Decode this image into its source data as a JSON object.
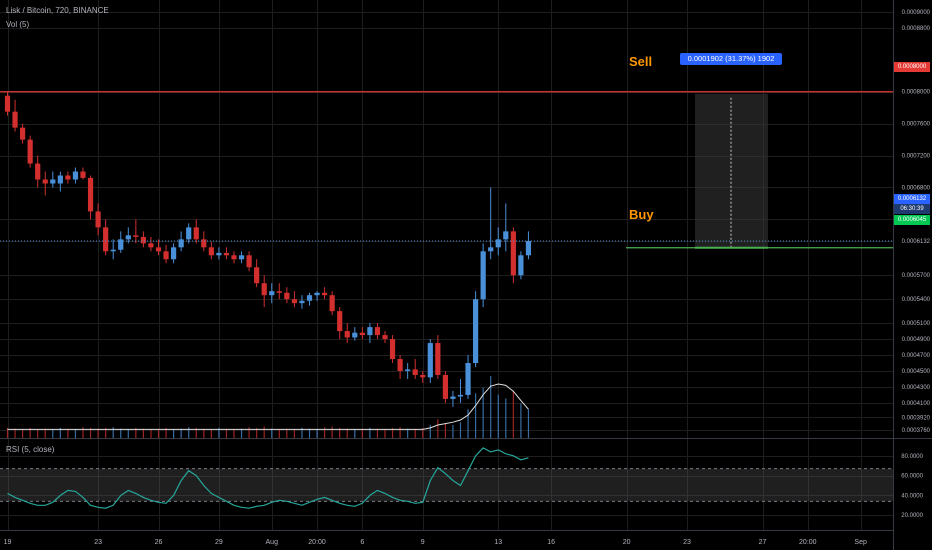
{
  "header": {
    "symbol": "Lisk / Bitcoin, 720, BINANCE",
    "volume_label": "Vol (5)",
    "rsi_label": "RSI (5, close)"
  },
  "annotations": {
    "sell": "Sell",
    "buy": "Buy",
    "measure": "0.0001902 (31.37%) 1902"
  },
  "price_tags": {
    "sell_level": "0.0008000",
    "last_price": "0.0006132",
    "countdown": "06:30:39",
    "buy_level": "0.0006045"
  },
  "colors": {
    "up": "#4a90d9",
    "down": "#d32f2f",
    "sell_line": "#e53935",
    "buy_line": "#4caf50",
    "rsi_line": "#26a69a",
    "grid": "#1e1e1e",
    "axis_text": "#b2b5be"
  },
  "chart_data": [
    {
      "type": "candlestick",
      "y_ticks": [
        "0.0009000",
        "0.0008800",
        "0.0008000",
        "0.0007600",
        "0.0007200",
        "0.0006800",
        "0.0006400",
        "0.0006132",
        "0.0005700",
        "0.0005400",
        "0.0005100",
        "0.0004900",
        "0.0004700",
        "0.0004500",
        "0.0004300",
        "0.0004100",
        "0.0003920",
        "0.0003760"
      ],
      "x_ticks": [
        "19",
        "23",
        "26",
        "29",
        "Aug",
        "20:00",
        "6",
        "9",
        "13",
        "16",
        "20",
        "23",
        "27",
        "20:00",
        "Sep"
      ],
      "x_tick_index": [
        0,
        12,
        20,
        28,
        35,
        41,
        47,
        55,
        65,
        72,
        82,
        90,
        100,
        106,
        113
      ],
      "ylim": [
        0.000366,
        0.000915
      ],
      "levels": {
        "sell": 0.0008,
        "buy": 0.0006045
      },
      "candles": [
        [
          0.000795,
          0.0008,
          0.00077,
          0.000775
        ],
        [
          0.000775,
          0.00079,
          0.00075,
          0.000755
        ],
        [
          0.000755,
          0.00076,
          0.000735,
          0.00074
        ],
        [
          0.00074,
          0.000745,
          0.000705,
          0.00071
        ],
        [
          0.00071,
          0.00072,
          0.00068,
          0.00069
        ],
        [
          0.00069,
          0.0007,
          0.00067,
          0.000685
        ],
        [
          0.000685,
          0.0007,
          0.00068,
          0.00069
        ],
        [
          0.000685,
          0.0007,
          0.000675,
          0.000695
        ],
        [
          0.000695,
          0.0007,
          0.000685,
          0.00069
        ],
        [
          0.00069,
          0.000705,
          0.000685,
          0.0007
        ],
        [
          0.0007,
          0.000705,
          0.00069,
          0.000692
        ],
        [
          0.000692,
          0.000695,
          0.00064,
          0.00065
        ],
        [
          0.00065,
          0.00066,
          0.00062,
          0.00063
        ],
        [
          0.00063,
          0.00064,
          0.000595,
          0.0006
        ],
        [
          0.0006,
          0.000615,
          0.00059,
          0.000602
        ],
        [
          0.000602,
          0.000625,
          0.000598,
          0.000615
        ],
        [
          0.000615,
          0.00063,
          0.00061,
          0.00062
        ],
        [
          0.00062,
          0.00064,
          0.00061,
          0.000618
        ],
        [
          0.000618,
          0.000625,
          0.000605,
          0.00061
        ],
        [
          0.00061,
          0.000618,
          0.0006,
          0.000605
        ],
        [
          0.000605,
          0.000615,
          0.000595,
          0.0006
        ],
        [
          0.0006,
          0.000608,
          0.000585,
          0.00059
        ],
        [
          0.00059,
          0.00061,
          0.000585,
          0.000605
        ],
        [
          0.000605,
          0.000625,
          0.0006,
          0.000615
        ],
        [
          0.000615,
          0.000635,
          0.00061,
          0.00063
        ],
        [
          0.00063,
          0.00064,
          0.00061,
          0.000615
        ],
        [
          0.000615,
          0.000625,
          0.0006,
          0.000605
        ],
        [
          0.000605,
          0.000612,
          0.00059,
          0.000595
        ],
        [
          0.000595,
          0.000605,
          0.00059,
          0.000598
        ],
        [
          0.000598,
          0.000605,
          0.00059,
          0.000595
        ],
        [
          0.000595,
          0.0006,
          0.000585,
          0.00059
        ],
        [
          0.00059,
          0.0006,
          0.000585,
          0.000595
        ],
        [
          0.000595,
          0.0006,
          0.000575,
          0.00058
        ],
        [
          0.00058,
          0.00059,
          0.000555,
          0.00056
        ],
        [
          0.00056,
          0.00057,
          0.00053,
          0.000545
        ],
        [
          0.000545,
          0.00056,
          0.000535,
          0.00055
        ],
        [
          0.00055,
          0.00056,
          0.00054,
          0.000548
        ],
        [
          0.000548,
          0.000555,
          0.000535,
          0.00054
        ],
        [
          0.00054,
          0.00055,
          0.00053,
          0.000535
        ],
        [
          0.000535,
          0.000545,
          0.000528,
          0.000538
        ],
        [
          0.000538,
          0.000548,
          0.000532,
          0.000545
        ],
        [
          0.000545,
          0.00055,
          0.000538,
          0.000548
        ],
        [
          0.000548,
          0.000555,
          0.00054,
          0.000545
        ],
        [
          0.000545,
          0.00055,
          0.00052,
          0.000525
        ],
        [
          0.000525,
          0.00053,
          0.00049,
          0.0005
        ],
        [
          0.0005,
          0.00051,
          0.000485,
          0.000492
        ],
        [
          0.000492,
          0.000505,
          0.000488,
          0.000498
        ],
        [
          0.000498,
          0.000505,
          0.00049,
          0.000495
        ],
        [
          0.000495,
          0.00051,
          0.000485,
          0.000505
        ],
        [
          0.000505,
          0.00051,
          0.00049,
          0.000495
        ],
        [
          0.000495,
          0.0005,
          0.000485,
          0.00049
        ],
        [
          0.00049,
          0.000495,
          0.00046,
          0.000465
        ],
        [
          0.000465,
          0.00047,
          0.00044,
          0.00045
        ],
        [
          0.00045,
          0.00046,
          0.00044,
          0.000452
        ],
        [
          0.000452,
          0.000465,
          0.00044,
          0.000445
        ],
        [
          0.000445,
          0.00045,
          0.000435,
          0.000442
        ],
        [
          0.000442,
          0.00049,
          0.000435,
          0.000485
        ],
        [
          0.000485,
          0.000495,
          0.00044,
          0.000445
        ],
        [
          0.000445,
          0.00045,
          0.00041,
          0.000415
        ],
        [
          0.000415,
          0.000425,
          0.000405,
          0.000418
        ],
        [
          0.000418,
          0.00044,
          0.00041,
          0.00042
        ],
        [
          0.00042,
          0.00047,
          0.000415,
          0.00046
        ],
        [
          0.00046,
          0.00055,
          0.000455,
          0.00054
        ],
        [
          0.00054,
          0.00061,
          0.00053,
          0.0006
        ],
        [
          0.0006,
          0.00068,
          0.00059,
          0.000605
        ],
        [
          0.000605,
          0.00063,
          0.000595,
          0.000615
        ],
        [
          0.000615,
          0.00066,
          0.0006,
          0.000625
        ],
        [
          0.000625,
          0.00063,
          0.00056,
          0.00057
        ],
        [
          0.00057,
          0.0006,
          0.000565,
          0.000595
        ],
        [
          0.000595,
          0.000625,
          0.00059,
          0.000613
        ]
      ],
      "volume": [
        14,
        13,
        12,
        14,
        12,
        13,
        12,
        14,
        13,
        12,
        15,
        14,
        13,
        14,
        15,
        13,
        12,
        14,
        13,
        12,
        13,
        14,
        12,
        13,
        15,
        14,
        13,
        12,
        14,
        13,
        12,
        13,
        15,
        14,
        16,
        13,
        12,
        13,
        12,
        14,
        13,
        12,
        15,
        16,
        14,
        13,
        12,
        13,
        14,
        13,
        12,
        14,
        15,
        13,
        12,
        14,
        18,
        26,
        20,
        18,
        22,
        40,
        62,
        70,
        86,
        60,
        55,
        65,
        48,
        40
      ],
      "volume_ma": [
        12,
        12,
        12,
        12,
        12,
        12,
        12,
        12,
        12,
        12,
        12,
        12,
        12,
        12,
        12,
        12,
        12,
        12,
        12,
        12,
        12,
        12,
        12,
        12,
        12,
        12,
        12,
        12,
        12,
        12,
        12,
        12,
        12,
        12,
        12,
        12,
        12,
        12,
        12,
        12,
        12,
        12,
        12,
        12,
        12,
        12,
        12,
        12,
        12,
        12,
        12,
        12,
        12,
        12,
        12,
        12,
        14,
        18,
        20,
        22,
        25,
        32,
        45,
        60,
        72,
        75,
        73,
        65,
        52,
        40
      ]
    },
    {
      "type": "line",
      "series": [
        {
          "name": "RSI (5, close)",
          "values": [
            42,
            38,
            35,
            32,
            30,
            30,
            33,
            40,
            45,
            44,
            38,
            30,
            28,
            27,
            30,
            40,
            45,
            42,
            38,
            35,
            33,
            32,
            40,
            55,
            65,
            60,
            50,
            42,
            38,
            34,
            30,
            28,
            27,
            29,
            30,
            33,
            35,
            34,
            32,
            30,
            33,
            36,
            38,
            35,
            32,
            30,
            29,
            32,
            40,
            45,
            42,
            38,
            35,
            34,
            32,
            33,
            55,
            68,
            62,
            55,
            50,
            65,
            80,
            88,
            84,
            86,
            82,
            80,
            76,
            78
          ]
        }
      ],
      "y_ticks": [
        "80.0000",
        "60.0000",
        "40.0000",
        "20.0000"
      ],
      "ylim": [
        5,
        97
      ],
      "band": [
        67,
        34
      ]
    }
  ]
}
